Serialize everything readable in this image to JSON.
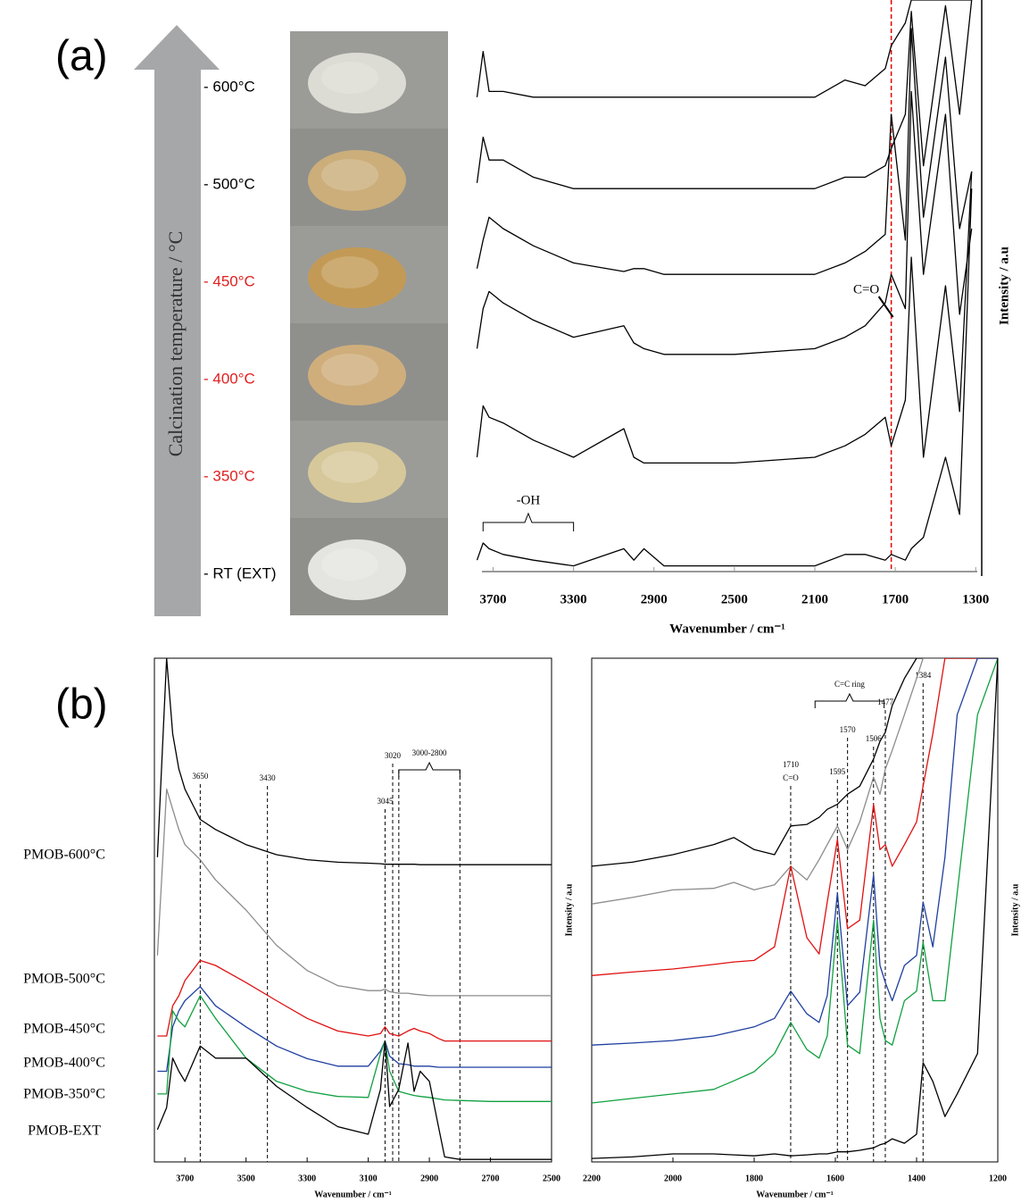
{
  "panel_labels": [
    "(a)",
    "(b)"
  ],
  "arrow_label": "Calcination temperature / °C",
  "photos": [
    {
      "label": "- 600°C",
      "label_color": "#000000",
      "powder_color": "#dcdcd4"
    },
    {
      "label": "- 500°C",
      "label_color": "#000000",
      "powder_color": "#cbae7a"
    },
    {
      "label": "- 450°C",
      "label_color": "#e02020",
      "powder_color": "#c39a55"
    },
    {
      "label": "- 400°C",
      "label_color": "#e02020",
      "powder_color": "#cfae7c"
    },
    {
      "label": "- 350°C",
      "label_color": "#e02020",
      "powder_color": "#d6c89a"
    },
    {
      "label": "- RT (EXT)",
      "label_color": "#000000",
      "powder_color": "#e4e4e0"
    }
  ],
  "chart_data": [
    {
      "type": "line",
      "xlabel": "Wavenumber / cm⁻¹",
      "ylabel": "Intensity / a.u",
      "xlim": [
        3800,
        1270
      ],
      "ylim": [
        0,
        100
      ],
      "xticks": [
        3700,
        3300,
        2900,
        2500,
        2100,
        1700,
        1300
      ],
      "x": [
        3780,
        3750,
        3720,
        3650,
        3500,
        3300,
        3050,
        3000,
        2950,
        2850,
        2500,
        2100,
        1950,
        1850,
        1750,
        1720,
        1650,
        1620,
        1560,
        1450,
        1380,
        1320
      ],
      "series": [
        {
          "color": "#000000",
          "values": [
            83,
            91,
            84,
            84,
            83,
            83,
            83,
            83,
            83,
            83,
            83,
            83,
            86,
            85,
            88,
            92,
            96,
            100,
            100,
            100,
            100,
            100
          ]
        },
        {
          "color": "#000000",
          "values": [
            68,
            76,
            72,
            72,
            69,
            67,
            67,
            67,
            67,
            67,
            67,
            67,
            69,
            69,
            71,
            74,
            80,
            98,
            71,
            99,
            80,
            100
          ]
        },
        {
          "color": "#000000",
          "values": [
            53,
            58,
            62,
            60,
            57,
            54,
            52.5,
            53,
            53,
            52,
            52,
            52,
            54,
            56,
            59,
            80,
            58,
            95,
            62,
            90,
            60,
            70
          ]
        },
        {
          "color": "#000000",
          "values": [
            39,
            46,
            49,
            47,
            44,
            41,
            43,
            40,
            39,
            38,
            38,
            39,
            41,
            43,
            47,
            52,
            46,
            84,
            52,
            80,
            45,
            60
          ]
        },
        {
          "color": "#000000",
          "values": [
            20,
            29,
            27,
            26,
            23,
            20,
            25,
            20,
            19,
            19,
            19,
            20,
            22,
            24,
            27,
            22,
            30,
            55,
            20,
            50,
            28,
            70
          ]
        },
        {
          "color": "#000000",
          "values": [
            2,
            5,
            4,
            3,
            2,
            1,
            4,
            2,
            4,
            1,
            1,
            1,
            3,
            3,
            2,
            3,
            2,
            4,
            6,
            20,
            10,
            67
          ]
        }
      ],
      "marker_line": {
        "x": 1720,
        "color": "#e00000"
      },
      "annotation": "C=O",
      "brace": {
        "from": 3750,
        "to": 3300,
        "label": "-OH"
      }
    },
    {
      "type": "line",
      "xlabel": "Wavenumber / cm⁻¹",
      "ylabel": "Intensity / a.u",
      "xlim": [
        3800,
        2500
      ],
      "ylim": [
        0,
        100
      ],
      "xticks": [
        3700,
        3500,
        3300,
        3100,
        2900,
        2700,
        2500
      ],
      "x": [
        3790,
        3760,
        3740,
        3720,
        3700,
        3650,
        3600,
        3500,
        3400,
        3300,
        3200,
        3100,
        3060,
        3045,
        3030,
        3000,
        2970,
        2950,
        2930,
        2900,
        2870,
        2850,
        2800,
        2700,
        2500
      ],
      "series": [
        {
          "name": "PMOB-600°C",
          "color": "#000000",
          "values": [
            60.5,
            100,
            85,
            78,
            74,
            68,
            66,
            63,
            61,
            60,
            59.5,
            59.3,
            59.2,
            59.1,
            59.1,
            59.1,
            59.1,
            59.1,
            59,
            59,
            59,
            59,
            59,
            59,
            59
          ]
        },
        {
          "name": "PMOB-500°C",
          "color": "#8c8c8c",
          "values": [
            41,
            74,
            70,
            66,
            63,
            60,
            56,
            50,
            43,
            38,
            35,
            34,
            34,
            34.3,
            33.8,
            33.5,
            33.5,
            33.3,
            33.2,
            33,
            33,
            33,
            33,
            33,
            33
          ]
        },
        {
          "name": "PMOB-450°C",
          "color": "#e01010",
          "values": [
            25,
            25,
            31,
            33,
            36,
            40,
            39,
            35.6,
            32,
            28.5,
            26,
            25,
            25.5,
            26.8,
            25.5,
            25,
            26,
            26.5,
            26,
            25.5,
            24.5,
            24,
            24,
            24,
            24
          ]
        },
        {
          "name": "PMOB-400°C",
          "color": "#1f3f9f",
          "values": [
            18,
            18,
            26.8,
            30,
            32,
            34.8,
            31,
            26.8,
            23,
            20.5,
            19,
            19,
            22,
            24,
            21,
            19.5,
            19.3,
            19,
            19,
            19,
            18.8,
            18.8,
            18.8,
            18.8,
            18.8
          ]
        },
        {
          "name": "PMOB-350°C",
          "color": "#10a040",
          "values": [
            13.5,
            13.5,
            30,
            28,
            26.8,
            33,
            28.5,
            20.6,
            16,
            14,
            13,
            12.8,
            21.5,
            24,
            18,
            14,
            13.5,
            13.2,
            13,
            12.8,
            12.5,
            12.3,
            12.2,
            12,
            12
          ]
        },
        {
          "name": "PMOB-EXT",
          "color": "#000000",
          "values": [
            6.4,
            10.8,
            20.6,
            18,
            16,
            23,
            20.6,
            20.6,
            15,
            10.8,
            7,
            5.5,
            14.4,
            24,
            11,
            14.4,
            23.6,
            14,
            18,
            16,
            7,
            1,
            0.5,
            0.5,
            0.5
          ]
        }
      ],
      "vlines": [
        {
          "x": 3650,
          "label": "3650"
        },
        {
          "x": 3430,
          "label": "3430"
        },
        {
          "x": 3045,
          "label": "3045"
        },
        {
          "x": 3020,
          "label": "3020"
        },
        {
          "x": 3000
        },
        {
          "x": 2800
        }
      ],
      "brace": {
        "from": 3000,
        "to": 2800,
        "label": "3000-2800"
      }
    },
    {
      "type": "line",
      "xlabel": "Wavenumber / cm⁻¹",
      "ylabel": "Intensity / a.u",
      "xlim": [
        2200,
        1200
      ],
      "ylim": [
        0,
        100
      ],
      "xticks": [
        2200,
        2000,
        1800,
        1600,
        1400,
        1200
      ],
      "x": [
        2200,
        2100,
        2000,
        1900,
        1850,
        1800,
        1750,
        1710,
        1670,
        1640,
        1620,
        1595,
        1570,
        1540,
        1506,
        1490,
        1477,
        1460,
        1430,
        1400,
        1384,
        1360,
        1330,
        1300,
        1250,
        1200
      ],
      "series": [
        {
          "color": "#000000",
          "values": [
            58.7,
            59.5,
            61,
            63,
            64.4,
            62,
            61,
            66.7,
            67,
            68.4,
            70,
            71,
            73,
            74.6,
            80,
            83.5,
            85.3,
            90.6,
            96,
            100,
            100,
            100,
            100,
            100,
            100,
            100
          ]
        },
        {
          "color": "#8c8c8c",
          "values": [
            51.2,
            52.5,
            54,
            54.3,
            55.5,
            54,
            55,
            58.7,
            56,
            60,
            63,
            66.7,
            62,
            67.5,
            76.4,
            73,
            78,
            81.7,
            88.8,
            96,
            100,
            100,
            100,
            100,
            100,
            100
          ]
        },
        {
          "color": "#e01010",
          "values": [
            37,
            37.7,
            38.3,
            39.2,
            39.7,
            40,
            42.7,
            58.7,
            44.5,
            41.3,
            51.6,
            64,
            46.3,
            48,
            71,
            62,
            63,
            58.7,
            63,
            67.5,
            74.6,
            85,
            100,
            100,
            100,
            100
          ]
        },
        {
          "color": "#1f3f9f",
          "values": [
            23.2,
            23.6,
            24.1,
            25,
            25.9,
            26.8,
            28.5,
            33.9,
            29.4,
            27.7,
            33,
            53.4,
            31,
            33.7,
            57,
            39,
            35.6,
            32,
            39,
            41,
            51.6,
            42.7,
            60.5,
            88.8,
            100,
            100
          ]
        },
        {
          "color": "#10a040",
          "values": [
            11.7,
            12.6,
            13.5,
            14.4,
            16.1,
            17.9,
            21.5,
            27.7,
            22.3,
            20.6,
            25,
            48,
            23.2,
            21.5,
            48,
            28.5,
            24.1,
            23.2,
            32,
            33.9,
            43.6,
            32,
            32,
            53.4,
            88.8,
            100
          ]
        },
        {
          "color": "#000000",
          "values": [
            0.7,
            1,
            1.6,
            1.6,
            1.4,
            1.2,
            1.6,
            1.2,
            1.4,
            1.6,
            1.6,
            2,
            2,
            2.3,
            2.8,
            3.4,
            3.7,
            4.6,
            3.7,
            5.5,
            19.7,
            16,
            9,
            13.5,
            21.5,
            100
          ]
        }
      ],
      "vlines": [
        {
          "x": 1710,
          "label": "1710",
          "sublabel": "C=O"
        },
        {
          "x": 1595,
          "label": "1595"
        },
        {
          "x": 1570,
          "label": "1570"
        },
        {
          "x": 1506,
          "label": "1506"
        },
        {
          "x": 1477,
          "label": "1477"
        },
        {
          "x": 1384,
          "label": "1384"
        }
      ],
      "brace": {
        "from": 1650,
        "to": 1480,
        "label": "C=C ring"
      }
    }
  ]
}
